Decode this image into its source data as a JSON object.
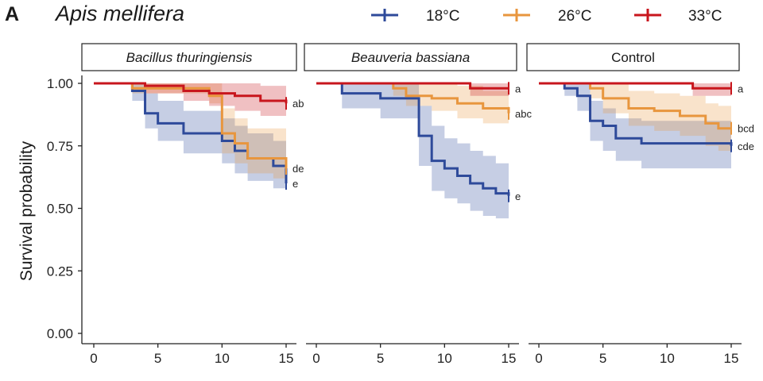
{
  "figure": {
    "panel_letter": "A",
    "species": "Apis mellifera"
  },
  "colors": {
    "18°C": "#2e4a9a",
    "26°C": "#e8963e",
    "33°C": "#c8161d"
  },
  "chart_data": {
    "type": "line",
    "subtype": "kaplan-meier step curves with confidence bands",
    "ylabel": "Survival probability",
    "xlabel": "",
    "xlim": [
      0,
      15
    ],
    "ylim": [
      0,
      1
    ],
    "x_ticks": [
      "0",
      "5",
      "10",
      "15"
    ],
    "y_ticks": [
      "0.00",
      "0.25",
      "0.50",
      "0.75",
      "1.00"
    ],
    "legend": {
      "placement": "top",
      "entries": [
        "18°C",
        "26°C",
        "33°C"
      ]
    },
    "grid": false,
    "panels": [
      {
        "strip": "Bacillus thuringiensis",
        "strip_italic": true,
        "series": [
          {
            "name": "18°C",
            "x": [
              0,
              3,
              4,
              5,
              7,
              10,
              11,
              12,
              14,
              15
            ],
            "y": [
              1.0,
              0.97,
              0.88,
              0.84,
              0.8,
              0.77,
              0.73,
              0.7,
              0.67,
              0.6
            ],
            "ci_lower": [
              1.0,
              0.93,
              0.82,
              0.77,
              0.72,
              0.68,
              0.64,
              0.61,
              0.58,
              0.56
            ],
            "ci_upper": [
              1.0,
              1.0,
              0.96,
              0.93,
              0.89,
              0.86,
              0.83,
              0.8,
              0.77,
              0.7
            ],
            "label": "e"
          },
          {
            "name": "26°C",
            "x": [
              0,
              3,
              9,
              10,
              11,
              12,
              14,
              15
            ],
            "y": [
              1.0,
              0.98,
              0.95,
              0.8,
              0.76,
              0.7,
              0.7,
              0.66
            ],
            "ci_lower": [
              1.0,
              0.96,
              0.92,
              0.72,
              0.68,
              0.64,
              0.62,
              0.58
            ],
            "ci_upper": [
              1.0,
              1.0,
              1.0,
              0.9,
              0.86,
              0.82,
              0.82,
              0.78
            ],
            "label": "de"
          },
          {
            "name": "33°C",
            "x": [
              0,
              4,
              7,
              9,
              11,
              13,
              15
            ],
            "y": [
              1.0,
              0.99,
              0.97,
              0.96,
              0.95,
              0.93,
              0.92
            ],
            "ci_lower": [
              1.0,
              0.96,
              0.93,
              0.91,
              0.89,
              0.87,
              0.85
            ],
            "ci_upper": [
              1.0,
              1.0,
              1.0,
              1.0,
              1.0,
              0.99,
              0.99
            ],
            "label": "ab"
          }
        ]
      },
      {
        "strip": "Beauveria bassiana",
        "strip_italic": true,
        "series": [
          {
            "name": "18°C",
            "x": [
              0,
              2,
              5,
              8,
              9,
              10,
              11,
              12,
              13,
              14,
              15
            ],
            "y": [
              1.0,
              0.96,
              0.94,
              0.79,
              0.69,
              0.66,
              0.63,
              0.6,
              0.58,
              0.56,
              0.55
            ],
            "ci_lower": [
              1.0,
              0.9,
              0.86,
              0.67,
              0.57,
              0.54,
              0.52,
              0.49,
              0.47,
              0.46,
              0.45
            ],
            "ci_upper": [
              1.0,
              1.0,
              1.0,
              0.91,
              0.83,
              0.78,
              0.76,
              0.73,
              0.71,
              0.68,
              0.67
            ],
            "label": "e"
          },
          {
            "name": "26°C",
            "x": [
              0,
              6,
              7,
              9,
              11,
              13,
              15
            ],
            "y": [
              1.0,
              0.98,
              0.95,
              0.94,
              0.92,
              0.9,
              0.88
            ],
            "ci_lower": [
              1.0,
              0.95,
              0.91,
              0.89,
              0.86,
              0.84,
              0.81
            ],
            "ci_upper": [
              1.0,
              1.0,
              1.0,
              1.0,
              0.99,
              0.97,
              0.95
            ],
            "label": "abc"
          },
          {
            "name": "33°C",
            "x": [
              0,
              12,
              15
            ],
            "y": [
              1.0,
              0.98,
              0.98
            ],
            "ci_lower": [
              1.0,
              0.95,
              0.95
            ],
            "ci_upper": [
              1.0,
              1.0,
              1.0
            ],
            "label": "a"
          }
        ]
      },
      {
        "strip": "Control",
        "strip_italic": false,
        "series": [
          {
            "name": "18°C",
            "x": [
              0,
              2,
              3,
              4,
              5,
              6,
              8,
              15
            ],
            "y": [
              1.0,
              0.98,
              0.95,
              0.85,
              0.83,
              0.78,
              0.76,
              0.75
            ],
            "ci_lower": [
              1.0,
              0.95,
              0.89,
              0.77,
              0.73,
              0.69,
              0.66,
              0.65
            ],
            "ci_upper": [
              1.0,
              1.0,
              1.0,
              0.93,
              0.9,
              0.86,
              0.85,
              0.85
            ],
            "label": "cde"
          },
          {
            "name": "26°C",
            "x": [
              0,
              4,
              5,
              7,
              9,
              11,
              13,
              14,
              15
            ],
            "y": [
              1.0,
              0.98,
              0.94,
              0.9,
              0.89,
              0.87,
              0.84,
              0.82,
              0.82
            ],
            "ci_lower": [
              1.0,
              0.94,
              0.88,
              0.83,
              0.81,
              0.79,
              0.75,
              0.73,
              0.73
            ],
            "ci_upper": [
              1.0,
              1.0,
              1.0,
              0.97,
              0.96,
              0.95,
              0.92,
              0.91,
              0.91
            ],
            "label": "bcd"
          },
          {
            "name": "33°C",
            "x": [
              0,
              12,
              15
            ],
            "y": [
              1.0,
              0.98,
              0.98
            ],
            "ci_lower": [
              1.0,
              0.95,
              0.95
            ],
            "ci_upper": [
              1.0,
              1.0,
              1.0
            ],
            "label": "a"
          }
        ]
      }
    ]
  }
}
